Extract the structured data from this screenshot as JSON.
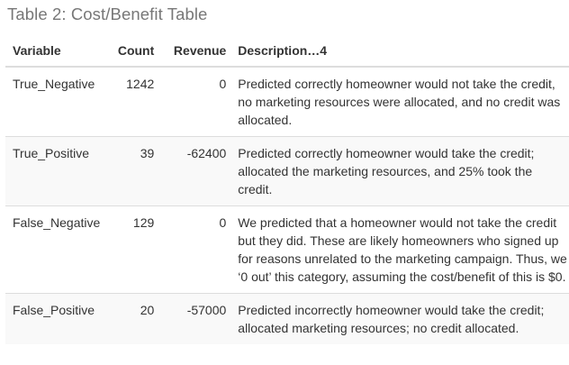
{
  "caption": "Table 2: Cost/Benefit Table",
  "table": {
    "headers": {
      "variable": "Variable",
      "count": "Count",
      "revenue": "Revenue",
      "description": "Description…4"
    },
    "rows": [
      {
        "variable": "True_Negative",
        "count": "1242",
        "revenue": "0",
        "description": "Predicted correctly homeowner would not take the credit, no marketing resources were allocated, and no credit was allocated."
      },
      {
        "variable": "True_Positive",
        "count": "39",
        "revenue": "-62400",
        "description": "Predicted correctly homeowner would take the credit; allocated the marketing resources, and 25% took the credit."
      },
      {
        "variable": "False_Negative",
        "count": "129",
        "revenue": "0",
        "description": "We predicted that a homeowner would not take the credit but they did. These are likely homeowners who signed up for reasons unrelated to the marketing campaign. Thus, we ‘0 out’ this category, assuming the cost/benefit of this is $0."
      },
      {
        "variable": "False_Positive",
        "count": "20",
        "revenue": "-57000",
        "description": "Predicted incorrectly homeowner would take the credit; allocated marketing resources; no credit allocated."
      }
    ]
  }
}
